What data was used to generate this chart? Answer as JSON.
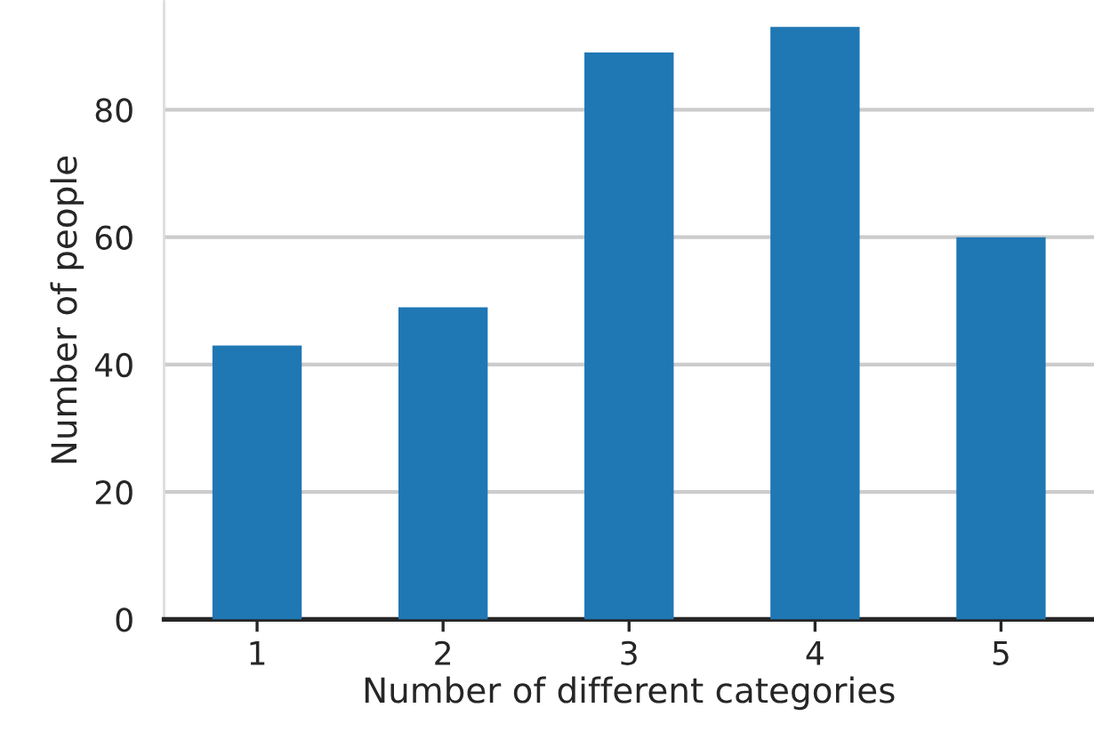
{
  "chart_data": {
    "type": "bar",
    "xlabel": "Number of different categories",
    "ylabel": "Number of people",
    "categories": [
      "1",
      "2",
      "3",
      "4",
      "5"
    ],
    "values": [
      43,
      49,
      89,
      93,
      60
    ],
    "color": "#1f77b4",
    "ylim": [
      0,
      97
    ],
    "yticks": [
      0,
      20,
      40,
      60,
      80
    ],
    "grid": "y"
  }
}
